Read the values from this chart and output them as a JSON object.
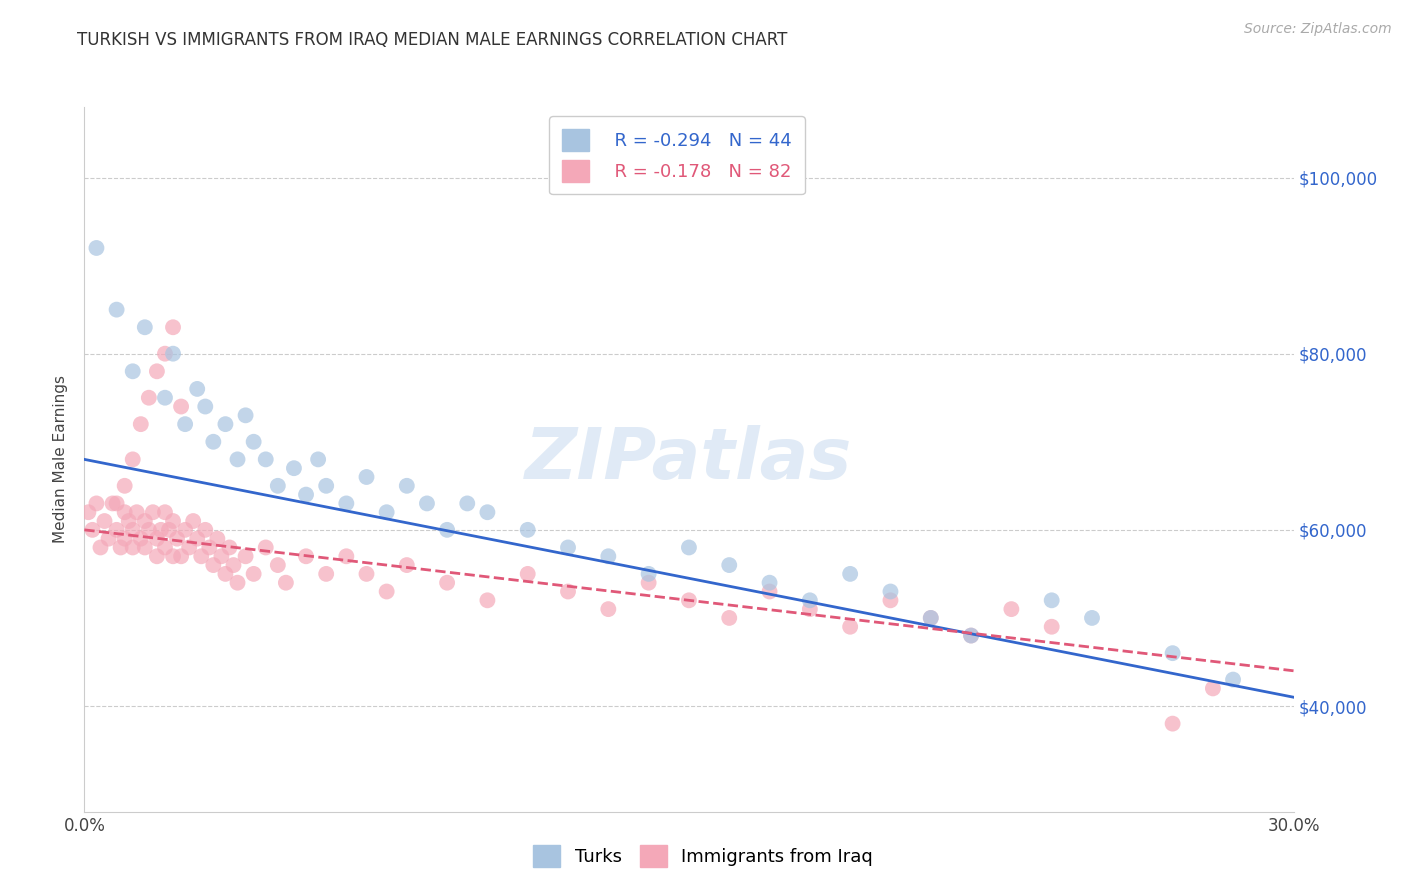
{
  "title": "TURKISH VS IMMIGRANTS FROM IRAQ MEDIAN MALE EARNINGS CORRELATION CHART",
  "source_text": "Source: ZipAtlas.com",
  "ylabel": "Median Male Earnings",
  "xmin": 0.0,
  "xmax": 0.3,
  "ymin": 28000,
  "ymax": 108000,
  "yticks": [
    40000,
    60000,
    80000,
    100000
  ],
  "ytick_labels": [
    "$40,000",
    "$60,000",
    "$80,000",
    "$100,000"
  ],
  "xticks": [
    0.0,
    0.05,
    0.1,
    0.15,
    0.2,
    0.25,
    0.3
  ],
  "xtick_labels": [
    "0.0%",
    "",
    "",
    "",
    "",
    "",
    "30.0%"
  ],
  "turks_color": "#a8c4e0",
  "iraq_color": "#f4a8b8",
  "trend_blue": "#3366cc",
  "trend_pink": "#e05878",
  "legend_r1": "R = -0.294",
  "legend_n1": "N = 44",
  "legend_r2": "R = -0.178",
  "legend_n2": "N = 82",
  "legend_label1": "Turks",
  "legend_label2": "Immigrants from Iraq",
  "watermark": "ZIPatlas",
  "turks_x": [
    0.003,
    0.008,
    0.012,
    0.015,
    0.02,
    0.022,
    0.025,
    0.028,
    0.03,
    0.032,
    0.035,
    0.038,
    0.04,
    0.042,
    0.045,
    0.048,
    0.052,
    0.055,
    0.058,
    0.06,
    0.065,
    0.07,
    0.075,
    0.08,
    0.085,
    0.09,
    0.095,
    0.1,
    0.11,
    0.12,
    0.13,
    0.14,
    0.15,
    0.16,
    0.17,
    0.18,
    0.19,
    0.2,
    0.21,
    0.22,
    0.24,
    0.25,
    0.27,
    0.285
  ],
  "turks_y": [
    92000,
    85000,
    78000,
    83000,
    75000,
    80000,
    72000,
    76000,
    74000,
    70000,
    72000,
    68000,
    73000,
    70000,
    68000,
    65000,
    67000,
    64000,
    68000,
    65000,
    63000,
    66000,
    62000,
    65000,
    63000,
    60000,
    63000,
    62000,
    60000,
    58000,
    57000,
    55000,
    58000,
    56000,
    54000,
    52000,
    55000,
    53000,
    50000,
    48000,
    52000,
    50000,
    46000,
    43000
  ],
  "iraq_x": [
    0.001,
    0.002,
    0.003,
    0.004,
    0.005,
    0.006,
    0.007,
    0.008,
    0.009,
    0.01,
    0.01,
    0.011,
    0.012,
    0.012,
    0.013,
    0.014,
    0.015,
    0.015,
    0.016,
    0.017,
    0.018,
    0.018,
    0.019,
    0.02,
    0.02,
    0.021,
    0.022,
    0.022,
    0.023,
    0.024,
    0.025,
    0.026,
    0.027,
    0.028,
    0.029,
    0.03,
    0.031,
    0.032,
    0.033,
    0.034,
    0.035,
    0.036,
    0.037,
    0.038,
    0.04,
    0.042,
    0.045,
    0.048,
    0.05,
    0.055,
    0.06,
    0.065,
    0.07,
    0.075,
    0.08,
    0.09,
    0.1,
    0.11,
    0.12,
    0.13,
    0.14,
    0.15,
    0.16,
    0.17,
    0.18,
    0.19,
    0.2,
    0.21,
    0.22,
    0.23,
    0.24,
    0.008,
    0.01,
    0.012,
    0.014,
    0.016,
    0.018,
    0.02,
    0.022,
    0.024,
    0.28,
    0.27
  ],
  "iraq_y": [
    62000,
    60000,
    63000,
    58000,
    61000,
    59000,
    63000,
    60000,
    58000,
    62000,
    59000,
    61000,
    58000,
    60000,
    62000,
    59000,
    61000,
    58000,
    60000,
    62000,
    59000,
    57000,
    60000,
    62000,
    58000,
    60000,
    57000,
    61000,
    59000,
    57000,
    60000,
    58000,
    61000,
    59000,
    57000,
    60000,
    58000,
    56000,
    59000,
    57000,
    55000,
    58000,
    56000,
    54000,
    57000,
    55000,
    58000,
    56000,
    54000,
    57000,
    55000,
    57000,
    55000,
    53000,
    56000,
    54000,
    52000,
    55000,
    53000,
    51000,
    54000,
    52000,
    50000,
    53000,
    51000,
    49000,
    52000,
    50000,
    48000,
    51000,
    49000,
    63000,
    65000,
    68000,
    72000,
    75000,
    78000,
    80000,
    83000,
    74000,
    42000,
    38000
  ],
  "trend_turks_x0": 0.0,
  "trend_turks_x1": 0.3,
  "trend_turks_y0": 68000,
  "trend_turks_y1": 41000,
  "trend_iraq_x0": 0.0,
  "trend_iraq_x1": 0.3,
  "trend_iraq_y0": 60000,
  "trend_iraq_y1": 44000
}
